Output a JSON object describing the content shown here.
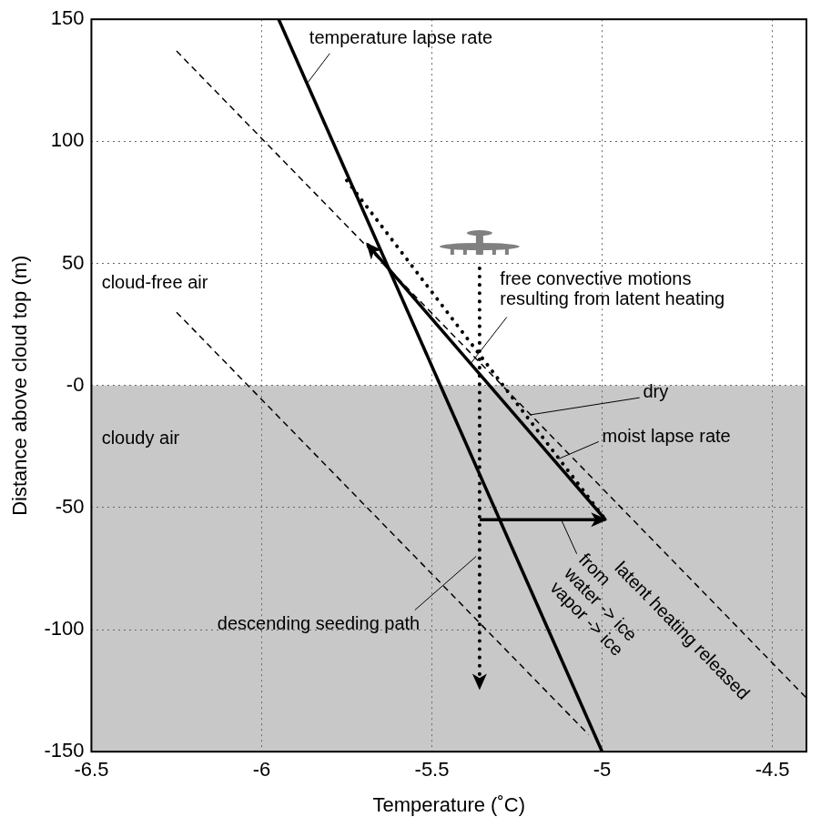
{
  "chart_data": {
    "type": "line",
    "x_label": "Temperature (˚C)",
    "y_label": "Distance above cloud top (m)",
    "xlim": [
      -6.5,
      -4.4
    ],
    "xticks": [
      -6.5,
      -6,
      -5.5,
      -5,
      -4.5
    ],
    "ylim": [
      -150,
      150
    ],
    "yticks": [
      -150,
      -100,
      -50,
      {
        "value": 0,
        "label": "-0"
      },
      50,
      100,
      150
    ],
    "grid": true,
    "cloudy_region": [
      -150,
      0
    ],
    "series": [
      {
        "x": [
          -5.95,
          -5.0
        ],
        "values": [
          150,
          -150
        ],
        "color": "#000000",
        "line_style": "solid",
        "marker": "none"
      },
      {
        "x": [
          -6.25,
          -4.4
        ],
        "values": [
          137,
          -128
        ],
        "color": "#000000",
        "line_style": "dashed",
        "marker": "none"
      },
      {
        "x": [
          -6.25,
          -5.04
        ],
        "values": [
          30,
          -143
        ],
        "color": "#000000",
        "line_style": "dashed",
        "marker": "none"
      },
      {
        "x": [
          -5.75,
          -4.99
        ],
        "values": [
          84,
          -55
        ],
        "color": "#000000",
        "line_style": "dotted",
        "marker": "none"
      },
      {
        "x": [
          -5.36,
          -5.36
        ],
        "values": [
          48,
          -124
        ],
        "color": "#000000",
        "line_style": "dotted",
        "marker": "arrow"
      },
      {
        "x": [
          -5.36,
          -4.99
        ],
        "values": [
          -55,
          -55
        ],
        "color": "#000000",
        "line_style": "solid",
        "marker": "arrow"
      },
      {
        "x": [
          -4.99,
          -5.69
        ],
        "values": [
          -55,
          58
        ],
        "color": "#000000",
        "line_style": "solid",
        "marker": "arrow"
      }
    ],
    "annotations": [
      {
        "text": "temperature lapse rate"
      },
      {
        "lines": [
          "free convective motions",
          "resulting from latent heating"
        ]
      },
      {
        "text": "cloud-free air"
      },
      {
        "text": "cloudy air"
      },
      {
        "text": "dry"
      },
      {
        "text": "moist lapse rate"
      },
      {
        "text": "descending seeding path"
      },
      {
        "lines": [
          "latent heating released",
          "from",
          "water -> ice",
          "vapor -> ice"
        ]
      }
    ]
  }
}
